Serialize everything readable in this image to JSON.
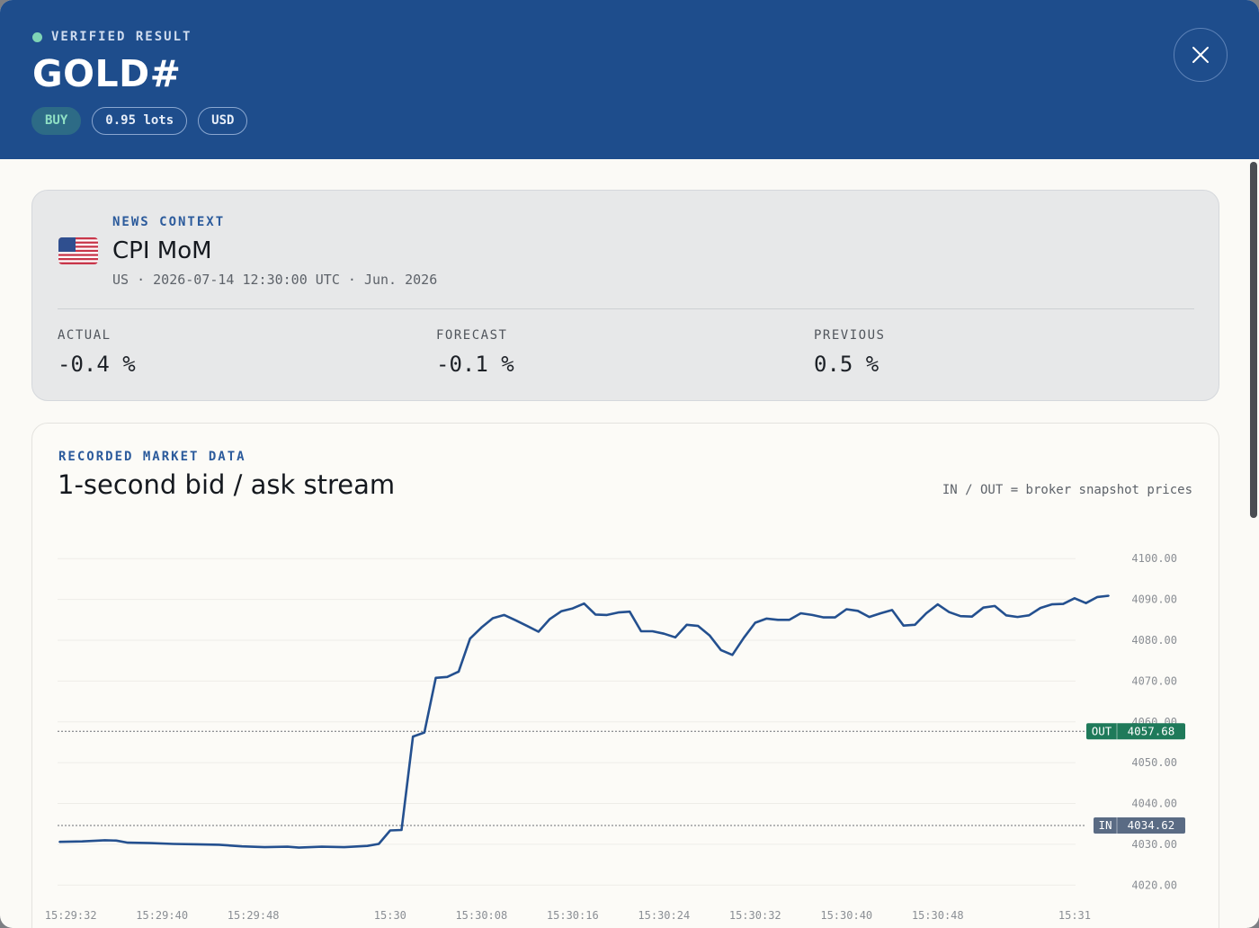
{
  "header": {
    "kicker": "VERIFIED RESULT",
    "symbol": "GOLD#",
    "chips": {
      "side": "BUY",
      "lots": "0.95 lots",
      "currency": "USD"
    },
    "status_color": "#7fd4b6",
    "brand_color": "#1e4d8c"
  },
  "news": {
    "kicker": "NEWS CONTEXT",
    "title": "CPI MoM",
    "meta": "US · 2026-07-14 12:30:00 UTC · Jun. 2026",
    "flag_icon": "us-flag-icon",
    "actual": {
      "label": "ACTUAL",
      "value": "-0.4 %"
    },
    "forecast": {
      "label": "FORECAST",
      "value": "-0.1 %"
    },
    "previous": {
      "label": "PREVIOUS",
      "value": "0.5 %"
    }
  },
  "market": {
    "kicker": "RECORDED MARKET DATA",
    "title": "1-second bid / ask stream",
    "note": "IN / OUT = broker snapshot prices"
  },
  "chart_data": {
    "type": "line",
    "title": "1-second bid / ask stream",
    "xlabel": "",
    "ylabel": "",
    "x_start": "15:29:31",
    "x_end": "15:31:03",
    "ylim": [
      4015,
      4106
    ],
    "yticks": [
      "4100.00",
      "4090.00",
      "4080.00",
      "4070.00",
      "4060.00",
      "4050.00",
      "4040.00",
      "4030.00",
      "4020.00"
    ],
    "ytick_values": [
      4100,
      4090,
      4080,
      4070,
      4060,
      4050,
      4040,
      4030,
      4020
    ],
    "xticks": [
      "15:29:32",
      "15:29:40",
      "15:29:48",
      "15:30",
      "15:30:08",
      "15:30:16",
      "15:30:24",
      "15:30:32",
      "15:30:40",
      "15:30:48",
      "15:31"
    ],
    "xtick_values": [
      "15:29:32",
      "15:29:40",
      "15:29:48",
      "15:30:00",
      "15:30:08",
      "15:30:16",
      "15:30:24",
      "15:30:32",
      "15:30:40",
      "15:30:48",
      "15:31:00"
    ],
    "grid": true,
    "line_color": "#24508f",
    "series": [
      {
        "values": [
          [
            "15:29:31",
            4030.6
          ],
          [
            "15:29:33",
            4030.7
          ],
          [
            "15:29:35",
            4031.0
          ],
          [
            "15:29:36",
            4030.9
          ],
          [
            "15:29:37",
            4030.4
          ],
          [
            "15:29:39",
            4030.3
          ],
          [
            "15:29:41",
            4030.1
          ],
          [
            "15:29:43",
            4030.0
          ],
          [
            "15:29:45",
            4029.9
          ],
          [
            "15:29:47",
            4029.5
          ],
          [
            "15:29:49",
            4029.3
          ],
          [
            "15:29:51",
            4029.4
          ],
          [
            "15:29:52",
            4029.2
          ],
          [
            "15:29:54",
            4029.4
          ],
          [
            "15:29:56",
            4029.3
          ],
          [
            "15:29:58",
            4029.6
          ],
          [
            "15:29:59",
            4030.1
          ],
          [
            "15:30:00",
            4033.4
          ],
          [
            "15:30:01",
            4033.5
          ],
          [
            "15:30:02",
            4056.4
          ],
          [
            "15:30:03",
            4057.4
          ],
          [
            "15:30:04",
            4070.8
          ],
          [
            "15:30:05",
            4071.0
          ],
          [
            "15:30:06",
            4072.3
          ],
          [
            "15:30:07",
            4080.4
          ],
          [
            "15:30:08",
            4083.1
          ],
          [
            "15:30:09",
            4085.4
          ],
          [
            "15:30:10",
            4086.2
          ],
          [
            "15:30:11",
            4084.9
          ],
          [
            "15:30:12",
            4083.5
          ],
          [
            "15:30:13",
            4082.1
          ],
          [
            "15:30:14",
            4085.2
          ],
          [
            "15:30:15",
            4087.1
          ],
          [
            "15:30:16",
            4087.8
          ],
          [
            "15:30:17",
            4089.0
          ],
          [
            "15:30:18",
            4086.3
          ],
          [
            "15:30:19",
            4086.2
          ],
          [
            "15:30:20",
            4086.8
          ],
          [
            "15:30:21",
            4087.0
          ],
          [
            "15:30:22",
            4082.2
          ],
          [
            "15:30:23",
            4082.2
          ],
          [
            "15:30:24",
            4081.6
          ],
          [
            "15:30:25",
            4080.7
          ],
          [
            "15:30:26",
            4083.8
          ],
          [
            "15:30:27",
            4083.5
          ],
          [
            "15:30:28",
            4081.2
          ],
          [
            "15:30:29",
            4077.6
          ],
          [
            "15:30:30",
            4076.4
          ],
          [
            "15:30:31",
            4080.6
          ],
          [
            "15:30:32",
            4084.3
          ],
          [
            "15:30:33",
            4085.3
          ],
          [
            "15:30:34",
            4085.0
          ],
          [
            "15:30:35",
            4085.0
          ],
          [
            "15:30:36",
            4086.6
          ],
          [
            "15:30:37",
            4086.2
          ],
          [
            "15:30:38",
            4085.6
          ],
          [
            "15:30:39",
            4085.6
          ],
          [
            "15:30:40",
            4087.6
          ],
          [
            "15:30:41",
            4087.2
          ],
          [
            "15:30:42",
            4085.7
          ],
          [
            "15:30:43",
            4086.6
          ],
          [
            "15:30:44",
            4087.4
          ],
          [
            "15:30:45",
            4083.6
          ],
          [
            "15:30:46",
            4083.8
          ],
          [
            "15:30:47",
            4086.6
          ],
          [
            "15:30:48",
            4088.8
          ],
          [
            "15:30:49",
            4086.9
          ],
          [
            "15:30:50",
            4085.9
          ],
          [
            "15:30:51",
            4085.8
          ],
          [
            "15:30:52",
            4088.0
          ],
          [
            "15:30:53",
            4088.4
          ],
          [
            "15:30:54",
            4086.1
          ],
          [
            "15:30:55",
            4085.7
          ],
          [
            "15:30:56",
            4086.1
          ],
          [
            "15:30:57",
            4087.9
          ],
          [
            "15:30:58",
            4088.8
          ],
          [
            "15:30:59",
            4088.9
          ],
          [
            "15:31:00",
            4090.3
          ],
          [
            "15:31:01",
            4089.1
          ],
          [
            "15:31:02",
            4090.6
          ],
          [
            "15:31:03",
            4090.9
          ]
        ]
      }
    ],
    "markers": [
      {
        "label": "OUT",
        "value": "4057.68",
        "price": 4057.68,
        "color": "#1f7a5a"
      },
      {
        "label": "IN",
        "value": "4034.62",
        "price": 4034.62,
        "color": "#5a6b84"
      }
    ]
  }
}
